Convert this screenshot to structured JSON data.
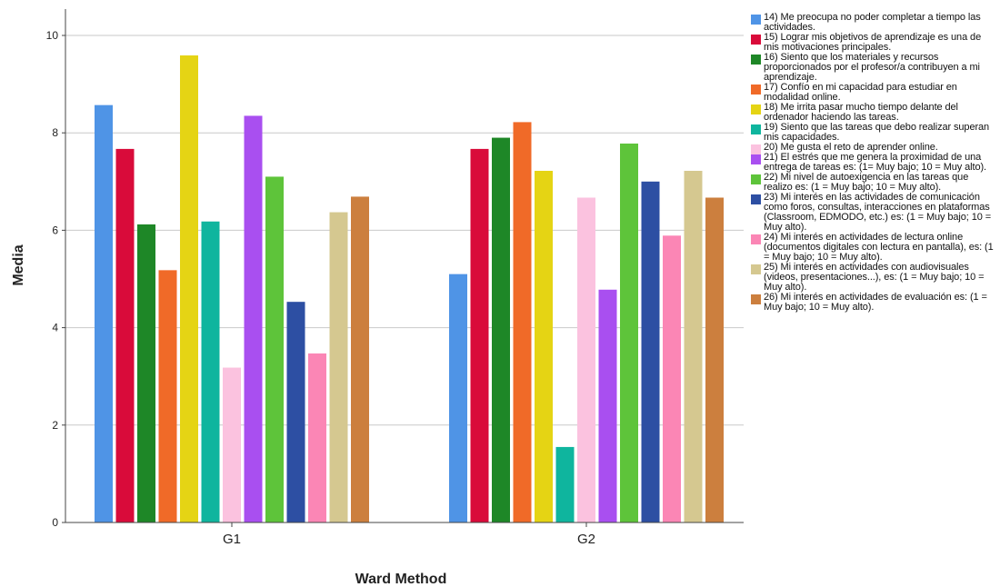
{
  "chart_data": {
    "type": "bar",
    "xlabel": "Ward Method",
    "ylabel": "Media",
    "ylim": [
      0,
      10.5
    ],
    "yticks": [
      0,
      2,
      4,
      6,
      8,
      10
    ],
    "categories": [
      "G1",
      "G2"
    ],
    "grid": "horizontal",
    "legend_position": "right",
    "series": [
      {
        "name": "14) Me preocupa no poder completar a tiempo las actividades.",
        "color": "#4f94e6",
        "values": [
          8.57,
          5.1
        ]
      },
      {
        "name": "15) Lograr mis objetivos de aprendizaje es una de mis motivaciones principales.",
        "color": "#d90b3a",
        "values": [
          7.67,
          7.67
        ]
      },
      {
        "name": "16) Siento que los materiales y recursos proporcionados por el profesor/a contribuyen a mi aprendizaje.",
        "color": "#1e8727",
        "values": [
          6.12,
          7.9
        ]
      },
      {
        "name": "17) Confío en mi capacidad para estudiar en modalidad online.",
        "color": "#f06a28",
        "values": [
          5.18,
          8.22
        ]
      },
      {
        "name": "18) Me irrita pasar mucho tiempo delante del ordenador haciendo las tareas.",
        "color": "#e5d414",
        "values": [
          9.59,
          7.22
        ]
      },
      {
        "name": "19) Siento que las tareas que debo realizar superan mis capacidades.",
        "color": "#0fb59e",
        "values": [
          6.18,
          1.55
        ]
      },
      {
        "name": "20) Me gusta el reto de aprender online.",
        "color": "#fbc2df",
        "values": [
          3.18,
          6.67
        ]
      },
      {
        "name": "21) El estrés que me genera la proximidad de una entrega de tareas es: (1= Muy bajo; 10 = Muy alto).",
        "color": "#a94ff0",
        "values": [
          8.35,
          4.78
        ]
      },
      {
        "name": "22) Mi nivel de autoexigencia en las tareas que realizo es: (1 = Muy bajo; 10 = Muy alto).",
        "color": "#5ec43a",
        "values": [
          7.1,
          7.78
        ]
      },
      {
        "name": "23) Mi interés en las actividades de comunicación como foros, consultas, interacciones en plataformas (Classroom, EDMODO, etc.) es: (1 = Muy bajo; 10 = Muy alto).",
        "color": "#2d4fa3",
        "values": [
          4.53,
          7.0
        ]
      },
      {
        "name": "24) Mi interés en actividades de lectura online (documentos digitales con lectura en pantalla), es: (1 = Muy bajo; 10 = Muy alto).",
        "color": "#fb86b5",
        "values": [
          3.47,
          5.89
        ]
      },
      {
        "name": "25) Mi interés en actividades con audiovisuales (videos, presentaciones...), es: (1 = Muy bajo; 10 = Muy alto).",
        "color": "#d5c890",
        "values": [
          6.37,
          7.22
        ]
      },
      {
        "name": "26) Mi interés en actividades de evaluación es: (1 = Muy bajo; 10 = Muy alto).",
        "color": "#cc7f3e",
        "values": [
          6.69,
          6.67
        ]
      }
    ]
  }
}
